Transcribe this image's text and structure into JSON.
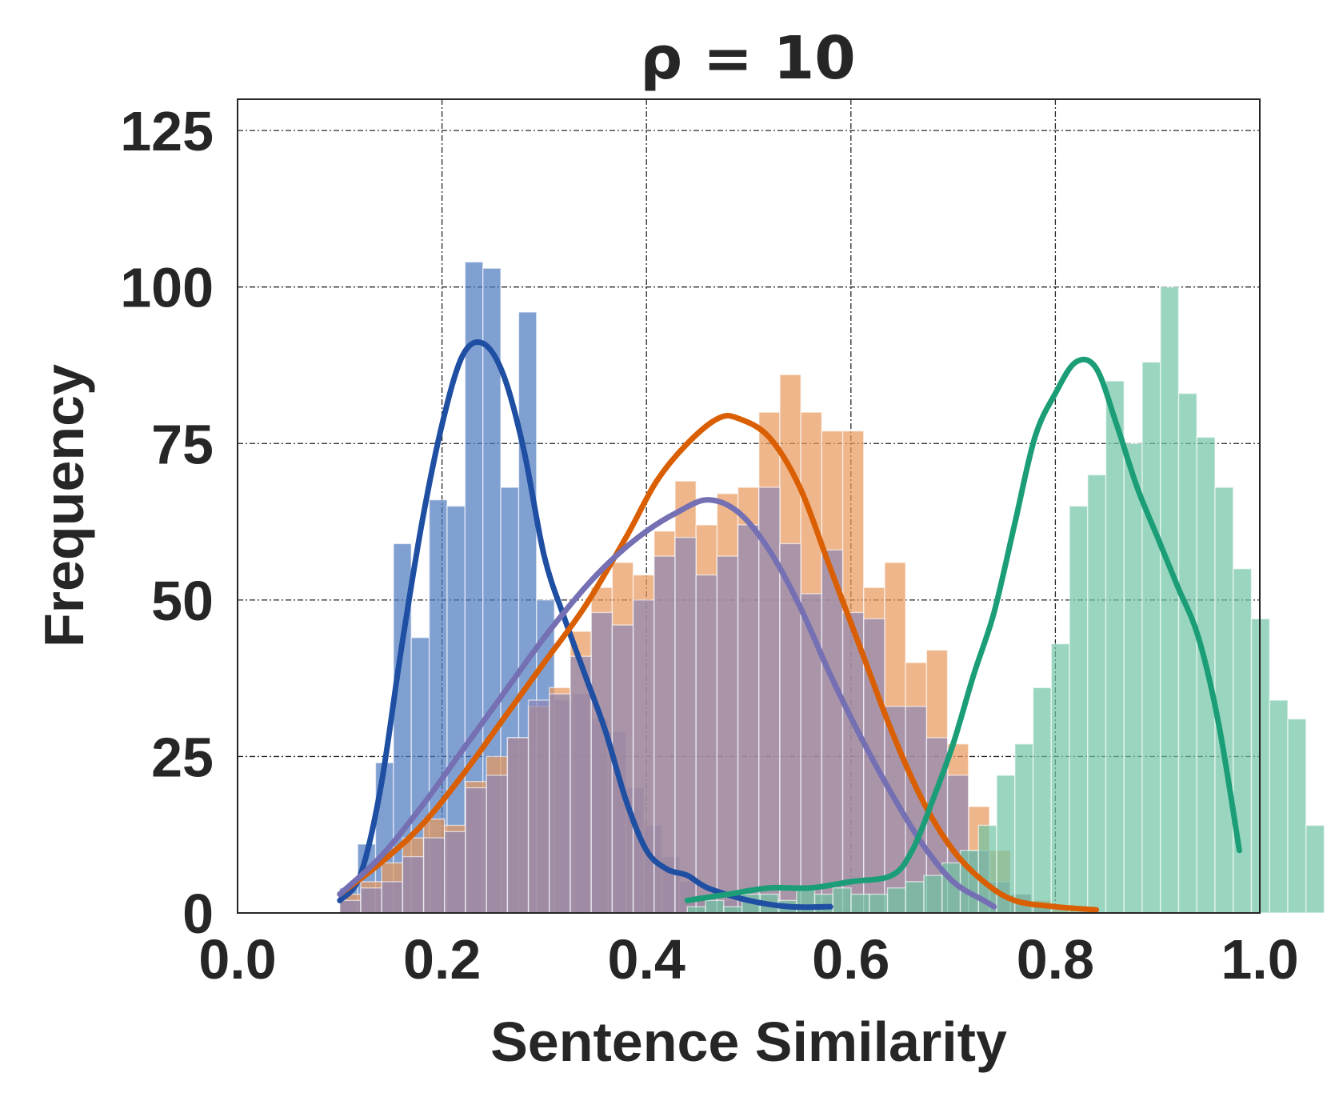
{
  "chart_data": {
    "type": "histogram",
    "title": "ρ = 10",
    "xlabel": "Sentence Similarity",
    "ylabel": "Frequency",
    "xlim": [
      0.0,
      1.0
    ],
    "ylim": [
      0,
      130
    ],
    "xticks": [
      "0.0",
      "0.2",
      "0.4",
      "0.6",
      "0.8",
      "1.0"
    ],
    "yticks": [
      "0",
      "25",
      "50",
      "75",
      "100",
      "125"
    ],
    "xtick_values": [
      0.0,
      0.2,
      0.4,
      0.6,
      0.8,
      1.0
    ],
    "ytick_values": [
      0,
      25,
      50,
      75,
      100,
      125
    ],
    "grid": true,
    "series": [
      {
        "color": "#1f4fa3",
        "bar_color": "#4c78bf",
        "bin_start": 0.1,
        "bin_width": 0.0175,
        "values": [
          4,
          11,
          24,
          59,
          44,
          66,
          65,
          104,
          103,
          68,
          96,
          50,
          34,
          35,
          31,
          29,
          20,
          14,
          9,
          5,
          3,
          2,
          2,
          1,
          1,
          1,
          0,
          0,
          1
        ],
        "kde": [
          [
            0.1,
            2
          ],
          [
            0.12,
            6
          ],
          [
            0.14,
            20
          ],
          [
            0.16,
            42
          ],
          [
            0.18,
            62
          ],
          [
            0.2,
            78
          ],
          [
            0.22,
            89
          ],
          [
            0.24,
            91
          ],
          [
            0.26,
            86
          ],
          [
            0.28,
            74
          ],
          [
            0.3,
            57
          ],
          [
            0.32,
            47
          ],
          [
            0.34,
            38
          ],
          [
            0.36,
            29
          ],
          [
            0.38,
            18
          ],
          [
            0.4,
            10
          ],
          [
            0.42,
            7
          ],
          [
            0.44,
            6
          ],
          [
            0.46,
            4
          ],
          [
            0.5,
            2
          ],
          [
            0.54,
            1
          ],
          [
            0.58,
            1
          ]
        ]
      },
      {
        "color": "#d95f02",
        "bar_color": "#e8975a",
        "bin_start": 0.1,
        "bin_width": 0.0205,
        "values": [
          3,
          5,
          8,
          12,
          15,
          14,
          21,
          25,
          28,
          33,
          36,
          45,
          52,
          56,
          54,
          61,
          69,
          62,
          67,
          68,
          80,
          86,
          80,
          77,
          77,
          52,
          56,
          40,
          42,
          27,
          17,
          10,
          3,
          2,
          1,
          0
        ],
        "kde": [
          [
            0.1,
            3
          ],
          [
            0.14,
            8
          ],
          [
            0.18,
            14
          ],
          [
            0.22,
            22
          ],
          [
            0.26,
            31
          ],
          [
            0.3,
            40
          ],
          [
            0.34,
            49
          ],
          [
            0.38,
            60
          ],
          [
            0.41,
            69
          ],
          [
            0.44,
            75
          ],
          [
            0.47,
            79
          ],
          [
            0.49,
            79
          ],
          [
            0.52,
            76
          ],
          [
            0.55,
            68
          ],
          [
            0.58,
            55
          ],
          [
            0.61,
            42
          ],
          [
            0.64,
            29
          ],
          [
            0.67,
            18
          ],
          [
            0.7,
            10
          ],
          [
            0.73,
            5
          ],
          [
            0.76,
            2
          ],
          [
            0.8,
            1
          ],
          [
            0.84,
            0.5
          ]
        ]
      },
      {
        "color": "#7570b3",
        "bar_color": "#8d86b5",
        "bin_start": 0.1,
        "bin_width": 0.0205,
        "values": [
          2,
          4,
          5,
          9,
          12,
          13,
          20,
          22,
          28,
          34,
          35,
          41,
          48,
          46,
          50,
          57,
          60,
          54,
          57,
          62,
          68,
          59,
          51,
          58,
          48,
          47,
          33,
          33,
          28,
          22,
          10,
          5,
          3,
          1
        ],
        "kde": [
          [
            0.1,
            3
          ],
          [
            0.14,
            9
          ],
          [
            0.18,
            17
          ],
          [
            0.22,
            26
          ],
          [
            0.26,
            35
          ],
          [
            0.3,
            44
          ],
          [
            0.34,
            52
          ],
          [
            0.37,
            57
          ],
          [
            0.4,
            61
          ],
          [
            0.43,
            64
          ],
          [
            0.46,
            66
          ],
          [
            0.49,
            64
          ],
          [
            0.52,
            58
          ],
          [
            0.55,
            49
          ],
          [
            0.58,
            38
          ],
          [
            0.61,
            28
          ],
          [
            0.64,
            19
          ],
          [
            0.67,
            11
          ],
          [
            0.7,
            5
          ],
          [
            0.73,
            2
          ],
          [
            0.74,
            1
          ]
        ]
      },
      {
        "color": "#1b9e77",
        "bar_color": "#6fc4a4",
        "bin_start": 0.44,
        "bin_width": 0.0178,
        "values": [
          1,
          2,
          1,
          3,
          3,
          2,
          4,
          3,
          4,
          3,
          3,
          4,
          5,
          6,
          8,
          10,
          14,
          22,
          27,
          36,
          43,
          65,
          70,
          85,
          75,
          88,
          100,
          83,
          76,
          68,
          55,
          47,
          34,
          31,
          14
        ],
        "kde": [
          [
            0.44,
            2
          ],
          [
            0.48,
            3
          ],
          [
            0.52,
            4
          ],
          [
            0.56,
            4
          ],
          [
            0.6,
            5
          ],
          [
            0.64,
            6
          ],
          [
            0.66,
            10
          ],
          [
            0.68,
            18
          ],
          [
            0.7,
            27
          ],
          [
            0.72,
            38
          ],
          [
            0.74,
            48
          ],
          [
            0.76,
            62
          ],
          [
            0.78,
            76
          ],
          [
            0.8,
            83
          ],
          [
            0.82,
            88
          ],
          [
            0.84,
            87
          ],
          [
            0.86,
            78
          ],
          [
            0.88,
            68
          ],
          [
            0.9,
            60
          ],
          [
            0.92,
            52
          ],
          [
            0.94,
            44
          ],
          [
            0.96,
            30
          ],
          [
            0.98,
            10
          ]
        ]
      }
    ]
  }
}
